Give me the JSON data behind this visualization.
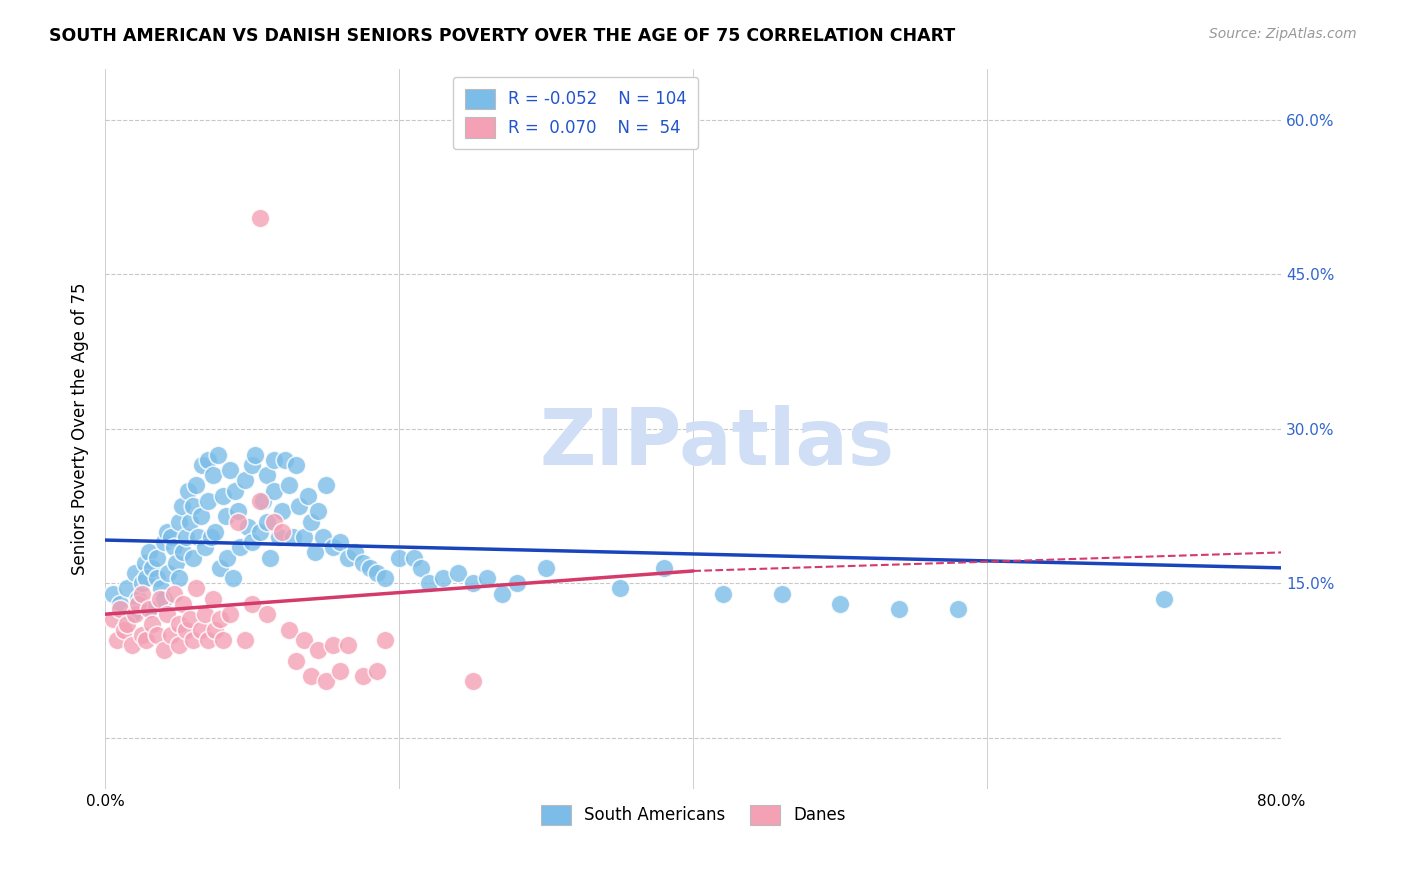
{
  "title": "SOUTH AMERICAN VS DANISH SENIORS POVERTY OVER THE AGE OF 75 CORRELATION CHART",
  "source": "Source: ZipAtlas.com",
  "ylabel": "Seniors Poverty Over the Age of 75",
  "xlim": [
    0.0,
    0.8
  ],
  "ylim": [
    -0.05,
    0.65
  ],
  "blue_color": "#7bbde8",
  "pink_color": "#f4a0b5",
  "line_blue": "#1a44bb",
  "line_pink": "#d43a6a",
  "line_dash_color": "#d43a6a",
  "watermark_color": "#d0dff5",
  "background_color": "#ffffff",
  "grid_color": "#c8c8c8",
  "south_americans_x": [
    0.005,
    0.01,
    0.015,
    0.018,
    0.02,
    0.022,
    0.025,
    0.027,
    0.028,
    0.03,
    0.03,
    0.032,
    0.035,
    0.035,
    0.038,
    0.04,
    0.04,
    0.042,
    0.043,
    0.045,
    0.047,
    0.048,
    0.05,
    0.05,
    0.052,
    0.053,
    0.055,
    0.056,
    0.058,
    0.06,
    0.06,
    0.062,
    0.063,
    0.065,
    0.066,
    0.068,
    0.07,
    0.07,
    0.072,
    0.073,
    0.075,
    0.077,
    0.078,
    0.08,
    0.082,
    0.083,
    0.085,
    0.087,
    0.088,
    0.09,
    0.092,
    0.095,
    0.097,
    0.1,
    0.1,
    0.102,
    0.105,
    0.107,
    0.11,
    0.11,
    0.112,
    0.115,
    0.115,
    0.118,
    0.12,
    0.122,
    0.125,
    0.128,
    0.13,
    0.132,
    0.135,
    0.138,
    0.14,
    0.143,
    0.145,
    0.148,
    0.15,
    0.155,
    0.16,
    0.165,
    0.17,
    0.175,
    0.18,
    0.185,
    0.19,
    0.2,
    0.21,
    0.215,
    0.22,
    0.23,
    0.24,
    0.25,
    0.26,
    0.27,
    0.28,
    0.3,
    0.35,
    0.38,
    0.42,
    0.46,
    0.5,
    0.54,
    0.58,
    0.72
  ],
  "south_americans_y": [
    0.14,
    0.13,
    0.145,
    0.12,
    0.16,
    0.135,
    0.15,
    0.17,
    0.155,
    0.18,
    0.125,
    0.165,
    0.175,
    0.155,
    0.145,
    0.19,
    0.135,
    0.2,
    0.16,
    0.195,
    0.185,
    0.17,
    0.21,
    0.155,
    0.225,
    0.18,
    0.195,
    0.24,
    0.21,
    0.225,
    0.175,
    0.245,
    0.195,
    0.215,
    0.265,
    0.185,
    0.23,
    0.27,
    0.195,
    0.255,
    0.2,
    0.275,
    0.165,
    0.235,
    0.215,
    0.175,
    0.26,
    0.155,
    0.24,
    0.22,
    0.185,
    0.25,
    0.205,
    0.265,
    0.19,
    0.275,
    0.2,
    0.23,
    0.21,
    0.255,
    0.175,
    0.24,
    0.27,
    0.195,
    0.22,
    0.27,
    0.245,
    0.195,
    0.265,
    0.225,
    0.195,
    0.235,
    0.21,
    0.18,
    0.22,
    0.195,
    0.245,
    0.185,
    0.19,
    0.175,
    0.18,
    0.17,
    0.165,
    0.16,
    0.155,
    0.175,
    0.175,
    0.165,
    0.15,
    0.155,
    0.16,
    0.15,
    0.155,
    0.14,
    0.15,
    0.165,
    0.145,
    0.165,
    0.14,
    0.14,
    0.13,
    0.125,
    0.125,
    0.135
  ],
  "danes_x": [
    0.005,
    0.008,
    0.01,
    0.013,
    0.015,
    0.018,
    0.02,
    0.022,
    0.025,
    0.025,
    0.028,
    0.03,
    0.032,
    0.035,
    0.037,
    0.04,
    0.042,
    0.045,
    0.047,
    0.05,
    0.05,
    0.053,
    0.055,
    0.058,
    0.06,
    0.062,
    0.065,
    0.068,
    0.07,
    0.073,
    0.075,
    0.078,
    0.08,
    0.085,
    0.09,
    0.095,
    0.1,
    0.105,
    0.11,
    0.115,
    0.12,
    0.125,
    0.13,
    0.135,
    0.14,
    0.145,
    0.15,
    0.155,
    0.16,
    0.165,
    0.175,
    0.185,
    0.19,
    0.25
  ],
  "danes_y": [
    0.115,
    0.095,
    0.125,
    0.105,
    0.11,
    0.09,
    0.12,
    0.13,
    0.1,
    0.14,
    0.095,
    0.125,
    0.11,
    0.1,
    0.135,
    0.085,
    0.12,
    0.1,
    0.14,
    0.11,
    0.09,
    0.13,
    0.105,
    0.115,
    0.095,
    0.145,
    0.105,
    0.12,
    0.095,
    0.135,
    0.105,
    0.115,
    0.095,
    0.12,
    0.21,
    0.095,
    0.13,
    0.23,
    0.12,
    0.21,
    0.2,
    0.105,
    0.075,
    0.095,
    0.06,
    0.085,
    0.055,
    0.09,
    0.065,
    0.09,
    0.06,
    0.065,
    0.095,
    0.055
  ],
  "danes_outlier_x": [
    0.105
  ],
  "danes_outlier_y": [
    0.505
  ],
  "trendline_blue_x0": 0.0,
  "trendline_blue_x1": 0.8,
  "trendline_blue_y0": 0.192,
  "trendline_blue_y1": 0.165,
  "trendline_pink_solid_x0": 0.0,
  "trendline_pink_solid_x1": 0.4,
  "trendline_pink_y0": 0.12,
  "trendline_pink_y1": 0.162,
  "trendline_pink_dash_x0": 0.4,
  "trendline_pink_dash_x1": 0.8,
  "trendline_pink_dash_y0": 0.162,
  "trendline_pink_dash_y1": 0.18
}
